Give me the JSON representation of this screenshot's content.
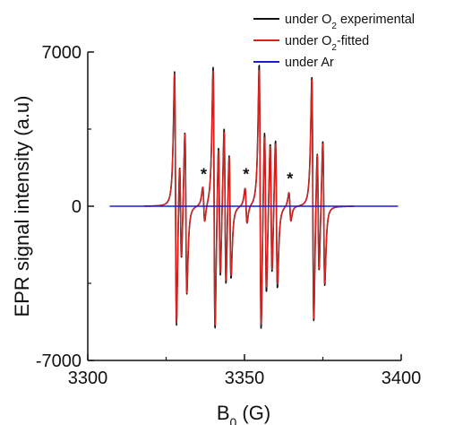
{
  "chart_data": {
    "type": "line",
    "title": "",
    "xlabel": {
      "main": "B",
      "sub": "0",
      "unit": " (G)"
    },
    "ylabel": "EPR signal intensity (a.u)",
    "xlim": [
      3300,
      3400
    ],
    "ylim": [
      -7000,
      7000
    ],
    "xticks": [
      3300,
      3350,
      3400
    ],
    "yticks": [
      -7000,
      0,
      7000
    ],
    "x_tick_labels": [
      "3300",
      "3350",
      "3400"
    ],
    "y_tick_labels": [
      "-7000",
      "0",
      "7000"
    ],
    "grid": false,
    "legend_position": "top-right",
    "annotations": [
      "*",
      "*",
      "*"
    ],
    "annotation_x": [
      3337,
      3350.5,
      3364.5
    ],
    "annotation_y": [
      1200,
      1200,
      1000
    ],
    "peaks": [
      {
        "center": 3328.0,
        "amp_exp": 5900,
        "amp_fit": 5800
      },
      {
        "center": 3329.6,
        "amp_exp": 2500,
        "amp_fit": 2450
      },
      {
        "center": 3331.3,
        "amp_exp": 3800,
        "amp_fit": 3750
      },
      {
        "center": 3340.3,
        "amp_exp": 6100,
        "amp_fit": 5950
      },
      {
        "center": 3342.0,
        "amp_exp": 3300,
        "amp_fit": 3200
      },
      {
        "center": 3343.8,
        "amp_exp": 3800,
        "amp_fit": 3650
      },
      {
        "center": 3345.4,
        "amp_exp": 3000,
        "amp_fit": 2900
      },
      {
        "center": 3355.0,
        "amp_exp": 6200,
        "amp_fit": 6000
      },
      {
        "center": 3356.7,
        "amp_exp": 4000,
        "amp_fit": 3800
      },
      {
        "center": 3358.5,
        "amp_exp": 3200,
        "amp_fit": 3100
      },
      {
        "center": 3360.2,
        "amp_exp": 3500,
        "amp_fit": 3350
      },
      {
        "center": 3371.8,
        "amp_exp": 5700,
        "amp_fit": 5600
      },
      {
        "center": 3373.5,
        "amp_exp": 3000,
        "amp_fit": 2950
      },
      {
        "center": 3375.3,
        "amp_exp": 3400,
        "amp_fit": 3300
      }
    ],
    "impurity_peaks": [
      {
        "center": 3337.0,
        "amp": 800
      },
      {
        "center": 3350.5,
        "amp": 800
      },
      {
        "center": 3364.5,
        "amp": 650
      }
    ],
    "series": [
      {
        "name": "under O2 experimental",
        "legend": {
          "pre": "under O",
          "sub": "2",
          "post": " experimental"
        },
        "color": "#111111",
        "curve": "exp",
        "stroke_width": 1.6
      },
      {
        "name": "under O2-fitted",
        "legend": {
          "pre": "under O",
          "sub": "2",
          "post": "-fitted"
        },
        "color": "#e0201c",
        "curve": "fit",
        "stroke_width": 1.4
      },
      {
        "name": "under Ar",
        "legend": {
          "pre": "under Ar",
          "sub": "",
          "post": ""
        },
        "color": "#1c1cd0",
        "curve": "flat",
        "stroke_width": 1.6
      }
    ]
  }
}
